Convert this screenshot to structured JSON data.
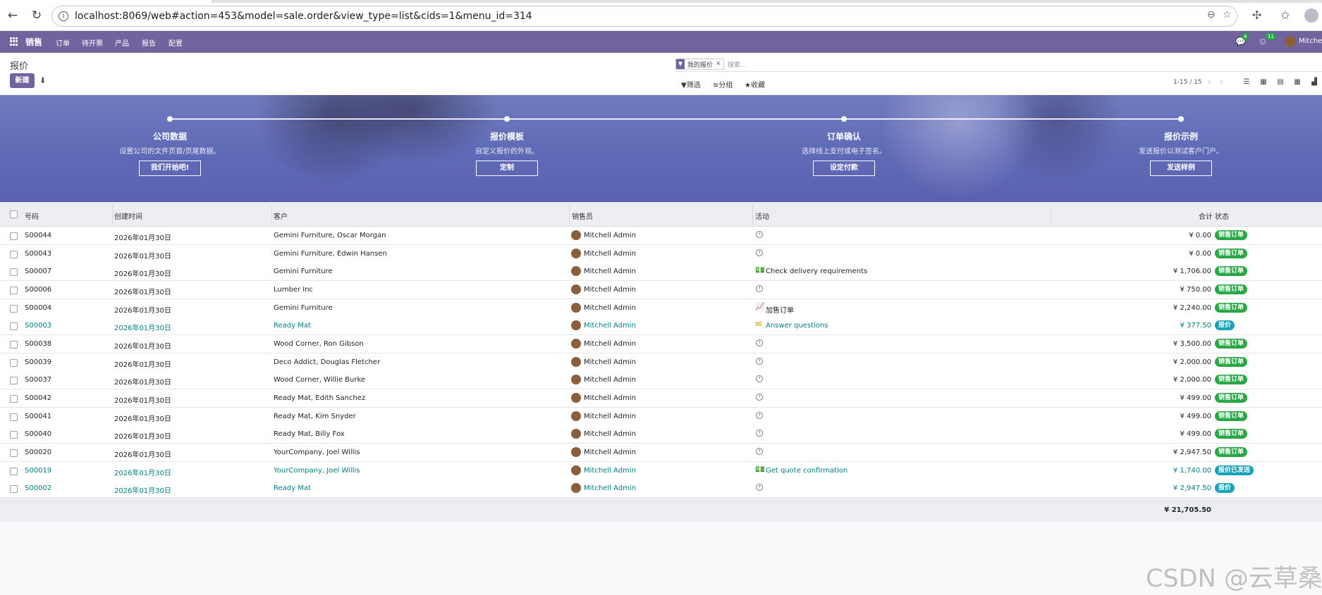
{
  "browser": {
    "url": "localhost:8069/web#action=453&model=sale.order&view_type=list&cids=1&menu_id=314"
  },
  "navbar": {
    "app_name": "销售",
    "menus": [
      "订单",
      "待开票",
      "产品",
      "报告",
      "配置"
    ],
    "messages_count": "4",
    "activities_count": "11",
    "user_name": "Mitchell"
  },
  "control_panel": {
    "title": "报价",
    "new_label": "新建",
    "facet_label": "我的报价",
    "search_placeholder": "搜索...",
    "filter_label": "筛选",
    "group_label": "分组",
    "favorite_label": "收藏",
    "pager": "1-15 / 15"
  },
  "onboarding": {
    "steps": [
      {
        "title": "公司数据",
        "desc": "设置公司的文件页首/页尾数据。",
        "button": "我们开始吧!"
      },
      {
        "title": "报价模板",
        "desc": "自定义报价的外观。",
        "button": "定制"
      },
      {
        "title": "订单确认",
        "desc": "选择线上支付或电子签名。",
        "button": "设定付款"
      },
      {
        "title": "报价示例",
        "desc": "发送报价以测试客户门户。",
        "button": "发送样例"
      }
    ]
  },
  "table": {
    "headers": {
      "number": "号码",
      "created": "创建时间",
      "customer": "客户",
      "salesperson": "销售员",
      "activity": "活动",
      "total": "合计",
      "status": "状态"
    },
    "rows": [
      {
        "number": "S00044",
        "created": "2026年01月30日",
        "customer": "Gemini Furniture, Oscar Morgan",
        "salesperson": "Mitchell Admin",
        "activity_icon": "clock-icon",
        "activity": "",
        "total": "¥ 0.00",
        "status": "销售订单",
        "status_color": "#28a745",
        "link": false
      },
      {
        "number": "S00043",
        "created": "2026年01月30日",
        "customer": "Gemini Furniture, Edwin Hansen",
        "salesperson": "Mitchell Admin",
        "activity_icon": "clock-icon",
        "activity": "",
        "total": "¥ 0.00",
        "status": "销售订单",
        "status_color": "#28a745",
        "link": false
      },
      {
        "number": "S00007",
        "created": "2026年01月30日",
        "customer": "Gemini Furniture",
        "salesperson": "Mitchell Admin",
        "activity_icon": "money-icon",
        "activity": "Check delivery requirements",
        "total": "¥ 1,706.00",
        "status": "销售订单",
        "status_color": "#28a745",
        "link": false
      },
      {
        "number": "S00006",
        "created": "2026年01月30日",
        "customer": "Lumber Inc",
        "salesperson": "Mitchell Admin",
        "activity_icon": "clock-icon",
        "activity": "",
        "total": "¥ 750.00",
        "status": "销售订单",
        "status_color": "#28a745",
        "link": false
      },
      {
        "number": "S00004",
        "created": "2026年01月30日",
        "customer": "Gemini Furniture",
        "salesperson": "Mitchell Admin",
        "activity_icon": "upsell-chart-icon",
        "activity": "加售订单",
        "total": "¥ 2,240.00",
        "status": "销售订单",
        "status_color": "#28a745",
        "link": false
      },
      {
        "number": "S00003",
        "created": "2026年01月30日",
        "customer": "Ready Mat",
        "salesperson": "Mitchell Admin",
        "activity_icon": "envelope-icon",
        "activity": "Answer questions",
        "total": "¥ 377.50",
        "status": "报价",
        "status_color": "#17a2b8",
        "link": true
      },
      {
        "number": "S00038",
        "created": "2026年01月30日",
        "customer": "Wood Corner, Ron Gibson",
        "salesperson": "Mitchell Admin",
        "activity_icon": "clock-icon",
        "activity": "",
        "total": "¥ 3,500.00",
        "status": "销售订单",
        "status_color": "#28a745",
        "link": false
      },
      {
        "number": "S00039",
        "created": "2026年01月30日",
        "customer": "Deco Addict, Douglas Fletcher",
        "salesperson": "Mitchell Admin",
        "activity_icon": "clock-icon",
        "activity": "",
        "total": "¥ 2,000.00",
        "status": "销售订单",
        "status_color": "#28a745",
        "link": false
      },
      {
        "number": "S00037",
        "created": "2026年01月30日",
        "customer": "Wood Corner, Willie Burke",
        "salesperson": "Mitchell Admin",
        "activity_icon": "clock-icon",
        "activity": "",
        "total": "¥ 2,000.00",
        "status": "销售订单",
        "status_color": "#28a745",
        "link": false
      },
      {
        "number": "S00042",
        "created": "2026年01月30日",
        "customer": "Ready Mat, Edith Sanchez",
        "salesperson": "Mitchell Admin",
        "activity_icon": "clock-icon",
        "activity": "",
        "total": "¥ 499.00",
        "status": "销售订单",
        "status_color": "#28a745",
        "link": false
      },
      {
        "number": "S00041",
        "created": "2026年01月30日",
        "customer": "Ready Mat, Kim Snyder",
        "salesperson": "Mitchell Admin",
        "activity_icon": "clock-icon",
        "activity": "",
        "total": "¥ 499.00",
        "status": "销售订单",
        "status_color": "#28a745",
        "link": false
      },
      {
        "number": "S00040",
        "created": "2026年01月30日",
        "customer": "Ready Mat, Billy Fox",
        "salesperson": "Mitchell Admin",
        "activity_icon": "clock-icon",
        "activity": "",
        "total": "¥ 499.00",
        "status": "销售订单",
        "status_color": "#28a745",
        "link": false
      },
      {
        "number": "S00020",
        "created": "2026年01月30日",
        "customer": "YourCompany, Joel Willis",
        "salesperson": "Mitchell Admin",
        "activity_icon": "clock-icon",
        "activity": "",
        "total": "¥ 2,947.50",
        "status": "销售订单",
        "status_color": "#28a745",
        "link": false
      },
      {
        "number": "S00019",
        "created": "2026年01月30日",
        "customer": "YourCompany, Joel Willis",
        "salesperson": "Mitchell Admin",
        "activity_icon": "money-icon",
        "activity": "Get quote confirmation",
        "total": "¥ 1,740.00",
        "status": "报价已发送",
        "status_color": "#17a2b8",
        "link": true
      },
      {
        "number": "S00002",
        "created": "2026年01月30日",
        "customer": "Ready Mat",
        "salesperson": "Mitchell Admin",
        "activity_icon": "clock-icon",
        "activity": "",
        "total": "¥ 2,947.50",
        "status": "报价",
        "status_color": "#17a2b8",
        "link": true
      }
    ],
    "sum_total": "¥ 21,705.50"
  },
  "watermark": "CSDN @云草桑"
}
